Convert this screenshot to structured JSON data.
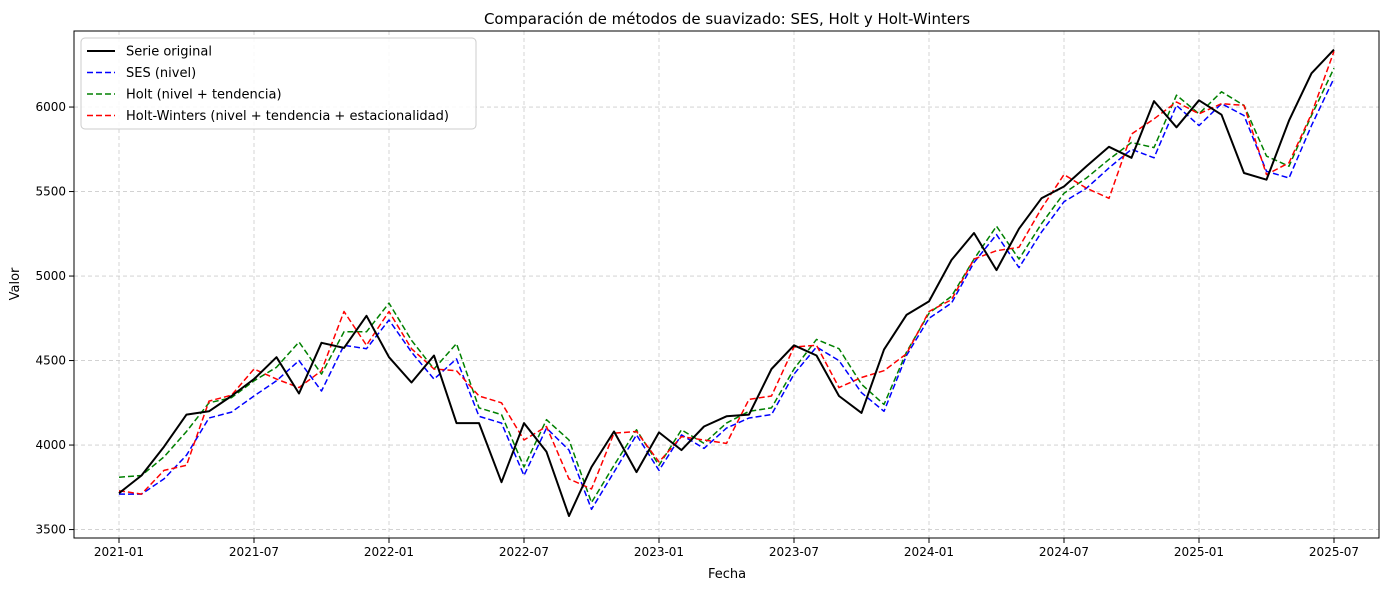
{
  "chart_data": {
    "type": "line",
    "title": "Comparación de métodos de suavizado: SES, Holt y Holt-Winters",
    "xlabel": "Fecha",
    "ylabel": "Valor",
    "x_start": "2021-01",
    "x_tick_labels": [
      "2021-01",
      "2021-07",
      "2022-01",
      "2022-07",
      "2023-01",
      "2023-07",
      "2024-01",
      "2024-07",
      "2025-01",
      "2025-07"
    ],
    "y_ticks": [
      3500,
      4000,
      4500,
      5000,
      5500,
      6000
    ],
    "xlim": [
      "2020-11",
      "2025-09"
    ],
    "ylim": [
      3450,
      6450
    ],
    "grid": true,
    "legend_position": "top-left",
    "series": [
      {
        "name": "Serie original",
        "color": "#000000",
        "style": "solid",
        "values": [
          3715,
          3820,
          3990,
          4180,
          4200,
          4290,
          4390,
          4520,
          4305,
          4605,
          4575,
          4765,
          4520,
          4370,
          4530,
          4130,
          4130,
          3780,
          4130,
          3960,
          3580,
          3870,
          4080,
          3840,
          4075,
          3970,
          4110,
          4170,
          4180,
          4450,
          4590,
          4530,
          4290,
          4190,
          4565,
          4770,
          4850,
          5095,
          5255,
          5035,
          5280,
          5460,
          5530,
          5650,
          5765,
          5700,
          6035,
          5880,
          6040,
          5955,
          5610,
          5570,
          5920,
          6200,
          6340
        ]
      },
      {
        "name": "SES (nivel)",
        "color": "#0000ff",
        "style": "dashed",
        "values": [
          3710,
          3710,
          3800,
          3940,
          4160,
          4195,
          4290,
          4380,
          4500,
          4320,
          4590,
          4570,
          4740,
          4550,
          4390,
          4510,
          4170,
          4130,
          3820,
          4100,
          3970,
          3620,
          3840,
          4060,
          3850,
          4060,
          3980,
          4100,
          4160,
          4180,
          4420,
          4580,
          4500,
          4310,
          4200,
          4530,
          4750,
          4840,
          5080,
          5245,
          5050,
          5260,
          5440,
          5520,
          5640,
          5750,
          5700,
          6010,
          5890,
          6020,
          5950,
          5620,
          5580,
          5890,
          6170
        ]
      },
      {
        "name": "Holt (nivel + tendencia)",
        "color": "#008000",
        "style": "dashed",
        "values": [
          3810,
          3820,
          3930,
          4080,
          4250,
          4280,
          4380,
          4460,
          4610,
          4420,
          4670,
          4670,
          4840,
          4620,
          4450,
          4600,
          4220,
          4180,
          3870,
          4150,
          4030,
          3660,
          3880,
          4090,
          3880,
          4090,
          4010,
          4130,
          4200,
          4220,
          4450,
          4625,
          4570,
          4360,
          4240,
          4550,
          4780,
          4880,
          5100,
          5295,
          5100,
          5310,
          5490,
          5580,
          5690,
          5790,
          5760,
          6070,
          5960,
          6090,
          6010,
          5710,
          5650,
          5950,
          6230
        ]
      },
      {
        "name": "Holt-Winters (nivel + tendencia + estacionalidad)",
        "color": "#ff0000",
        "style": "dashed",
        "values": [
          3730,
          3710,
          3850,
          3880,
          4260,
          4295,
          4450,
          4390,
          4340,
          4440,
          4790,
          4590,
          4790,
          4570,
          4450,
          4440,
          4290,
          4250,
          4030,
          4110,
          3800,
          3740,
          4070,
          4080,
          3900,
          4050,
          4030,
          4010,
          4270,
          4290,
          4580,
          4590,
          4340,
          4400,
          4440,
          4540,
          4790,
          4860,
          5100,
          5150,
          5170,
          5400,
          5600,
          5520,
          5460,
          5840,
          5930,
          6030,
          5960,
          6020,
          6010,
          5600,
          5670,
          5960,
          6330
        ]
      }
    ]
  }
}
